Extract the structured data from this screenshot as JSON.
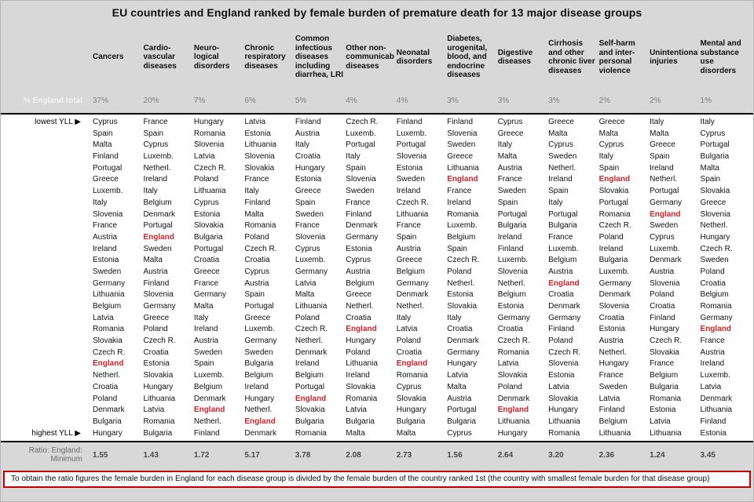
{
  "labels": {
    "percent_row": "% England total",
    "lowest": "lowest YLL ▶",
    "highest": "highest YLL ▶",
    "ratio_row": "Ratio: England: Minimum"
  },
  "footnote": "To obtain the ratio figures the female burden in England for each disease group is divided by the female burden of the country ranked 1st (the country with smallest female burden for that disease group)",
  "highlight_country": "England",
  "colors": {
    "background": "#d8d8d8",
    "panel": "#ffffff",
    "highlight_red": "#d2232a",
    "footnote_border": "#c00000",
    "percent_text": "#7f7f7f",
    "ratio_text": "#4a4a4a"
  },
  "chart_data": {
    "type": "table",
    "title": "EU countries and England ranked by female burden of premature death for 13 major disease groups",
    "ranking_order": "rank 1 = lowest YLL (smallest female burden), rank 28 = highest YLL",
    "n_rows": 28,
    "columns": [
      {
        "label": "Cancers",
        "england_total_percent": "37%",
        "ratio_england_minimum": "1.55",
        "ranking": [
          "Cyprus",
          "Spain",
          "Malta",
          "Finland",
          "Portugal",
          "Greece",
          "Luxemb.",
          "Italy",
          "Slovenia",
          "France",
          "Austria",
          "Ireland",
          "Estonia",
          "Sweden",
          "Germany",
          "Lithuania",
          "Belgium",
          "Latvia",
          "Romania",
          "Slovakia",
          "Czech R.",
          "England",
          "Netherl.",
          "Croatia",
          "Poland",
          "Denmark",
          "Bulgaria",
          "Hungary"
        ]
      },
      {
        "label": "Cardio-vascular diseases",
        "england_total_percent": "20%",
        "ratio_england_minimum": "1.43",
        "ranking": [
          "France",
          "Spain",
          "Cyprus",
          "Luxemb.",
          "Netherl.",
          "Ireland",
          "Italy",
          "Belgium",
          "Denmark",
          "Portugal",
          "England",
          "Sweden",
          "Malta",
          "Austria",
          "Finland",
          "Slovenia",
          "Germany",
          "Greece",
          "Poland",
          "Czech R.",
          "Croatia",
          "Estonia",
          "Slovakia",
          "Hungary",
          "Lithuania",
          "Latvia",
          "Romania",
          "Bulgaria"
        ]
      },
      {
        "label": "Neuro-logical disorders",
        "england_total_percent": "7%",
        "ratio_england_minimum": "1.72",
        "ranking": [
          "Hungary",
          "Romania",
          "Slovenia",
          "Latvia",
          "Czech R.",
          "Poland",
          "Lithuania",
          "Cyprus",
          "Estonia",
          "Slovakia",
          "Bulgaria",
          "Portugal",
          "Croatia",
          "Greece",
          "France",
          "Germany",
          "Malta",
          "Italy",
          "Ireland",
          "Austria",
          "Sweden",
          "Spain",
          "Luxemb.",
          "Belgium",
          "Denmark",
          "England",
          "Netherl.",
          "Finland"
        ]
      },
      {
        "label": "Chronic respiratory diseases",
        "england_total_percent": "6%",
        "ratio_england_minimum": "5.17",
        "ranking": [
          "Latvia",
          "Estonia",
          "Lithuania",
          "Slovenia",
          "Slovakia",
          "France",
          "Italy",
          "Finland",
          "Malta",
          "Romania",
          "Poland",
          "Czech R.",
          "Croatia",
          "Cyprus",
          "Austria",
          "Spain",
          "Portugal",
          "Greece",
          "Luxemb.",
          "Germany",
          "Sweden",
          "Bulgaria",
          "Belgium",
          "Ireland",
          "Hungary",
          "Netherl.",
          "England",
          "Denmark"
        ]
      },
      {
        "label": "Common infectious diseases including diarrhea, LRI",
        "england_total_percent": "5%",
        "ratio_england_minimum": "3.78",
        "ranking": [
          "Finland",
          "Austria",
          "Italy",
          "Croatia",
          "Hungary",
          "Estonia",
          "Greece",
          "Spain",
          "Sweden",
          "France",
          "Slovenia",
          "Cyprus",
          "Luxemb.",
          "Germany",
          "Latvia",
          "Malta",
          "Lithuania",
          "Poland",
          "Czech R.",
          "Netherl.",
          "Denmark",
          "Ireland",
          "Belgium",
          "Portugal",
          "England",
          "Slovakia",
          "Bulgaria",
          "Romania"
        ]
      },
      {
        "label": "Other non-communicable diseases",
        "england_total_percent": "4%",
        "ratio_england_minimum": "2.08",
        "ranking": [
          "Czech R.",
          "Luxemb.",
          "Portugal",
          "Italy",
          "Spain",
          "Slovenia",
          "Sweden",
          "France",
          "Finland",
          "Denmark",
          "Germany",
          "Estonia",
          "Cyprus",
          "Austria",
          "Belgium",
          "Greece",
          "Netherl.",
          "Croatia",
          "England",
          "Hungary",
          "Poland",
          "Lithuania",
          "Ireland",
          "Slovakia",
          "Romania",
          "Latvia",
          "Bulgaria",
          "Malta"
        ]
      },
      {
        "label": "Neonatal disorders",
        "england_total_percent": "4%",
        "ratio_england_minimum": "2.73",
        "ranking": [
          "Finland",
          "Luxemb.",
          "Portugal",
          "Slovenia",
          "Estonia",
          "Sweden",
          "Ireland",
          "Czech R.",
          "Lithuania",
          "France",
          "Spain",
          "Austria",
          "Greece",
          "Belgium",
          "Germany",
          "Denmark",
          "Netherl.",
          "Italy",
          "Latvia",
          "Poland",
          "Croatia",
          "England",
          "Romania",
          "Cyprus",
          "Slovakia",
          "Hungary",
          "Bulgaria",
          "Malta"
        ]
      },
      {
        "label": "Diabetes, urogenital, blood, and endocrine diseases",
        "england_total_percent": "3%",
        "ratio_england_minimum": "1.56",
        "ranking": [
          "Finland",
          "Slovenia",
          "Sweden",
          "Greece",
          "Lithuania",
          "England",
          "France",
          "Ireland",
          "Romania",
          "Luxemb.",
          "Belgium",
          "Spain",
          "Czech R.",
          "Poland",
          "Netherl.",
          "Estonia",
          "Slovakia",
          "Italy",
          "Croatia",
          "Denmark",
          "Germany",
          "Hungary",
          "Latvia",
          "Malta",
          "Austria",
          "Portugal",
          "Bulgaria",
          "Cyprus"
        ]
      },
      {
        "label": "Digestive diseases",
        "england_total_percent": "3%",
        "ratio_england_minimum": "2.64",
        "ranking": [
          "Cyprus",
          "Greece",
          "Italy",
          "Malta",
          "Austria",
          "France",
          "Sweden",
          "Spain",
          "Portugal",
          "Bulgaria",
          "Ireland",
          "Finland",
          "Luxemb.",
          "Slovenia",
          "Netherl.",
          "Belgium",
          "Estonia",
          "Germany",
          "Croatia",
          "Czech R.",
          "Romania",
          "Latvia",
          "Slovakia",
          "Poland",
          "Denmark",
          "England",
          "Lithuania",
          "Hungary"
        ]
      },
      {
        "label": "Cirrhosis and other chronic liver diseases",
        "england_total_percent": "3%",
        "ratio_england_minimum": "3.20",
        "ranking": [
          "Greece",
          "Malta",
          "Cyprus",
          "Sweden",
          "Netherl.",
          "Ireland",
          "Spain",
          "Italy",
          "Portugal",
          "Bulgaria",
          "France",
          "Luxemb.",
          "Belgium",
          "Austria",
          "England",
          "Croatia",
          "Denmark",
          "Germany",
          "Finland",
          "Poland",
          "Czech R.",
          "Slovenia",
          "Estonia",
          "Latvia",
          "Slovakia",
          "Hungary",
          "Lithuania",
          "Romania"
        ]
      },
      {
        "label": "Self-harm and inter-personal violence",
        "england_total_percent": "2%",
        "ratio_england_minimum": "2.36",
        "ranking": [
          "Greece",
          "Malta",
          "Cyprus",
          "Italy",
          "Spain",
          "England",
          "Slovakia",
          "Portugal",
          "Romania",
          "Czech R.",
          "Poland",
          "Ireland",
          "Bulgaria",
          "Luxemb.",
          "Germany",
          "Denmark",
          "Slovenia",
          "Croatia",
          "Estonia",
          "Austria",
          "Netherl.",
          "Hungary",
          "France",
          "Sweden",
          "Latvia",
          "Finland",
          "Belgium",
          "Lithuania"
        ]
      },
      {
        "label": "Unintentional injuries",
        "england_total_percent": "2%",
        "ratio_england_minimum": "1.24",
        "ranking": [
          "Italy",
          "Malta",
          "Greece",
          "Spain",
          "Ireland",
          "Netherl.",
          "Portugal",
          "Germany",
          "England",
          "Sweden",
          "Cyprus",
          "Luxemb.",
          "Denmark",
          "Austria",
          "Slovenia",
          "Poland",
          "Croatia",
          "Finland",
          "Hungary",
          "Czech R.",
          "Slovakia",
          "France",
          "Belgium",
          "Bulgaria",
          "Romania",
          "Estonia",
          "Latvia",
          "Lithuania"
        ]
      },
      {
        "label": "Mental and substance use disorders",
        "england_total_percent": "1%",
        "ratio_england_minimum": "3.45",
        "ranking": [
          "Italy",
          "Cyprus",
          "Portugal",
          "Bulgaria",
          "Malta",
          "Spain",
          "Slovakia",
          "Greece",
          "Slovenia",
          "Netherl.",
          "Hungary",
          "Czech R.",
          "Sweden",
          "Poland",
          "Croatia",
          "Belgium",
          "Romania",
          "Germany",
          "England",
          "France",
          "Austria",
          "Ireland",
          "Luxemb.",
          "Latvia",
          "Denmark",
          "Lithuania",
          "Finland",
          "Estonia"
        ]
      }
    ]
  }
}
